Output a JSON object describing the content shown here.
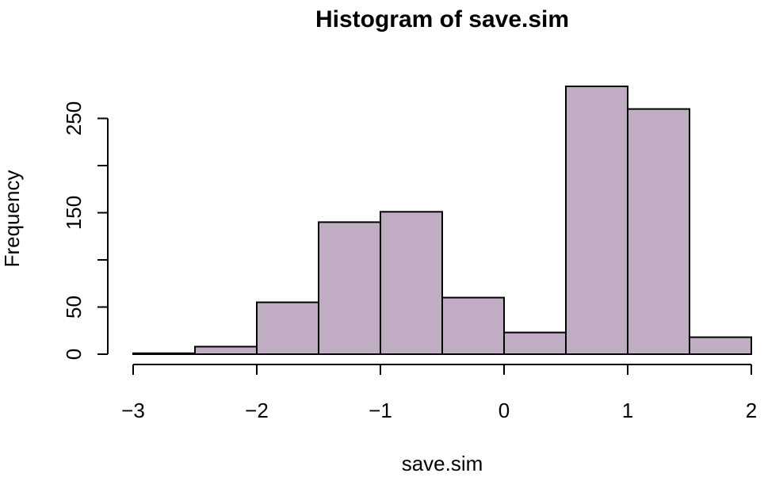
{
  "chart_data": {
    "type": "bar",
    "title": "Histogram of save.sim",
    "xlabel": "save.sim",
    "ylabel": "Frequency",
    "bins": [
      {
        "start": -3.0,
        "end": -2.5,
        "count": 1
      },
      {
        "start": -2.5,
        "end": -2.0,
        "count": 8
      },
      {
        "start": -2.0,
        "end": -1.5,
        "count": 55
      },
      {
        "start": -1.5,
        "end": -1.0,
        "count": 140
      },
      {
        "start": -1.0,
        "end": -0.5,
        "count": 151
      },
      {
        "start": -0.5,
        "end": 0.0,
        "count": 60
      },
      {
        "start": 0.0,
        "end": 0.5,
        "count": 23
      },
      {
        "start": 0.5,
        "end": 1.0,
        "count": 284
      },
      {
        "start": 1.0,
        "end": 1.5,
        "count": 260
      },
      {
        "start": 1.5,
        "end": 2.0,
        "count": 18
      }
    ],
    "xlim": [
      -3,
      2
    ],
    "ylim": [
      0,
      284
    ],
    "xticks": [
      {
        "value": -3,
        "label": "−3"
      },
      {
        "value": -2,
        "label": "−2"
      },
      {
        "value": -1,
        "label": "−1"
      },
      {
        "value": 0,
        "label": "0"
      },
      {
        "value": 1,
        "label": "1"
      },
      {
        "value": 2,
        "label": "2"
      }
    ],
    "yticks": [
      {
        "value": 0,
        "label": "0"
      },
      {
        "value": 50,
        "label": "50"
      },
      {
        "value": 100,
        "label": ""
      },
      {
        "value": 150,
        "label": "150"
      },
      {
        "value": 200,
        "label": ""
      },
      {
        "value": 250,
        "label": "250"
      }
    ],
    "bar_color": "#c0adc4",
    "grid": false
  }
}
